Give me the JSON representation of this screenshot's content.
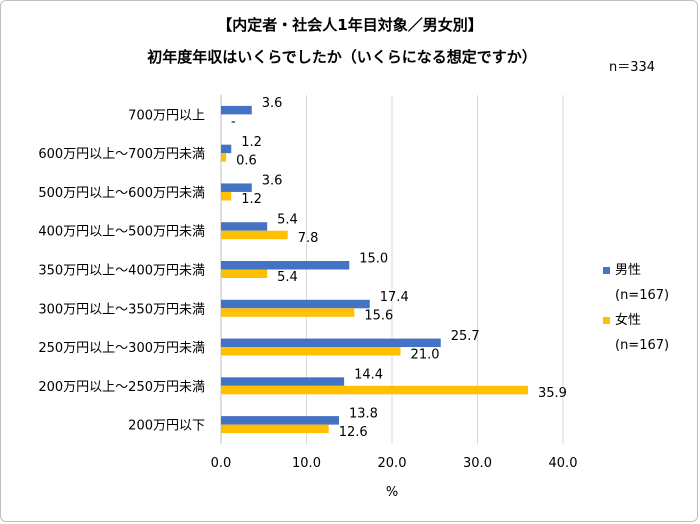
{
  "chart_data": {
    "type": "bar",
    "orientation": "horizontal",
    "title": "【内定者・社会人1年目対象／男女別】",
    "subtitle": "初年度年収はいくらでしたか（いくらになる想定ですか）",
    "sample_size": "n＝334",
    "categories": [
      "700万円以上",
      "600万円以上～700万円未満",
      "500万円以上～600万円未満",
      "400万円以上～500万円未満",
      "350万円以上～400万円未満",
      "300万円以上～350万円未満",
      "250万円以上～300万円未満",
      "200万円以上～250万円未満",
      "200万円以下"
    ],
    "series": [
      {
        "name": "男性",
        "n_label": "(n=167)",
        "color": "#4472c4",
        "values": [
          3.6,
          1.2,
          3.6,
          5.4,
          15.0,
          17.4,
          25.7,
          14.4,
          13.8
        ],
        "labels": [
          "3.6",
          "1.2",
          "3.6",
          "5.4",
          "15.0",
          "17.4",
          "25.7",
          "14.4",
          "13.8"
        ]
      },
      {
        "name": "女性",
        "n_label": "(n=167)",
        "color": "#ffc000",
        "values": [
          0,
          0.6,
          1.2,
          7.8,
          5.4,
          15.6,
          21.0,
          35.9,
          12.6
        ],
        "labels": [
          "-",
          "0.6",
          "1.2",
          "7.8",
          "5.4",
          "15.6",
          "21.0",
          "35.9",
          "12.6"
        ]
      }
    ],
    "xlim": [
      0,
      40
    ],
    "xticks": [
      "0.0",
      "10.0",
      "20.0",
      "30.0",
      "40.0"
    ],
    "xlabel": "%",
    "gridlines": true,
    "legend_position": "right"
  }
}
